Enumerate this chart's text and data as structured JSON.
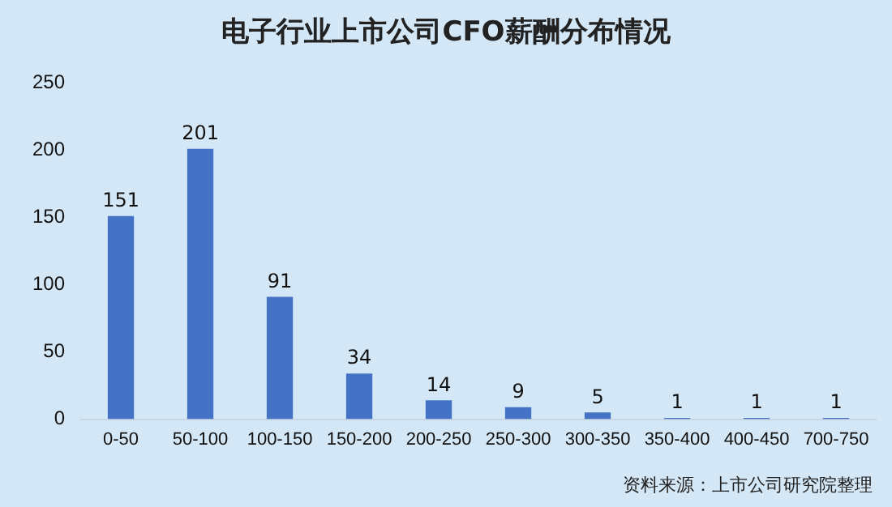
{
  "chart_data": {
    "type": "bar",
    "title": "电子行业上市公司CFO薪酬分布情况",
    "categories": [
      "0-50",
      "50-100",
      "100-150",
      "150-200",
      "200-250",
      "250-300",
      "300-350",
      "350-400",
      "400-450",
      "700-750"
    ],
    "values": [
      151,
      201,
      91,
      34,
      14,
      9,
      5,
      1,
      1,
      1
    ],
    "color": "#4472c4",
    "ylim": [
      0,
      250
    ],
    "yticks": [
      0,
      50,
      100,
      150,
      200,
      250
    ],
    "grid": false,
    "data_labels": true,
    "annotations": [
      "资料来源：上市公司研究院整理"
    ]
  }
}
